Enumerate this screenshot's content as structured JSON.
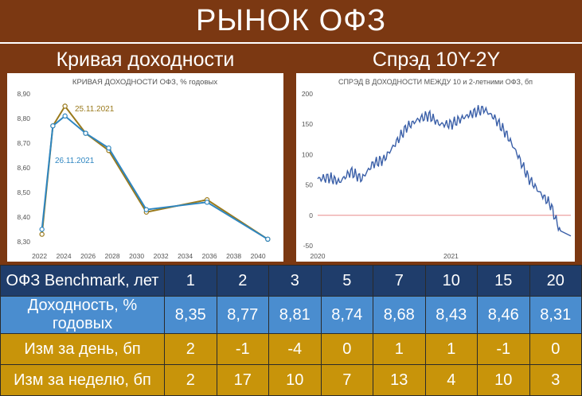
{
  "header": {
    "title": "РЫНОК ОФЗ"
  },
  "left_panel": {
    "heading": "Кривая доходности"
  },
  "right_panel": {
    "heading": "Спрэд 10Y-2Y"
  },
  "colors": {
    "series_a": "#9a7a1c",
    "series_b": "#2e86c1",
    "spread_line": "#3a5fa8",
    "zero_line": "#e88a8a"
  },
  "chart_data": [
    {
      "type": "line",
      "title": "КРИВАЯ ДОХОДНОСТИ ОФЗ, % годовых",
      "xlabel": "",
      "ylabel": "",
      "xlim": [
        2021.5,
        2041.5
      ],
      "ylim": [
        8.29,
        8.9
      ],
      "x_ticks": [
        "2022",
        "2024",
        "2026",
        "2028",
        "2030",
        "2032",
        "2034",
        "2036",
        "2038",
        "2040"
      ],
      "y_ticks": [
        "8,30",
        "8,40",
        "8,50",
        "8,60",
        "8,70",
        "8,80",
        "8,90"
      ],
      "x": [
        2022.2,
        2023.1,
        2024.1,
        2025.8,
        2027.7,
        2030.8,
        2035.8,
        2040.8
      ],
      "series": [
        {
          "name": "25.11.2021",
          "values": [
            8.33,
            8.77,
            8.85,
            8.74,
            8.67,
            8.42,
            8.47,
            8.31
          ]
        },
        {
          "name": "26.11.2021",
          "values": [
            8.35,
            8.77,
            8.81,
            8.74,
            8.68,
            8.43,
            8.46,
            8.31
          ]
        }
      ],
      "grid": false
    },
    {
      "type": "line",
      "title": "СПРЭД В ДОХОДНОСТИ МЕЖДУ 10 и 2-летними ОФЗ, бп",
      "xlabel": "",
      "ylabel": "",
      "xlim": [
        "2020-01-01",
        "2021-11-26"
      ],
      "ylim": [
        -50,
        200
      ],
      "x_ticks": [
        "2020",
        "2021"
      ],
      "y_ticks": [
        "-50",
        "0",
        "50",
        "100",
        "150",
        "200"
      ],
      "reference_line": 0,
      "x": [
        "2020-01",
        "2020-02",
        "2020-03",
        "2020-04",
        "2020-05",
        "2020-06",
        "2020-07",
        "2020-08",
        "2020-09",
        "2020-10",
        "2020-11",
        "2020-12",
        "2021-01",
        "2021-02",
        "2021-03",
        "2021-04",
        "2021-05",
        "2021-06",
        "2021-07",
        "2021-08",
        "2021-09",
        "2021-10",
        "2021-11"
      ],
      "values": [
        60,
        62,
        55,
        72,
        60,
        85,
        92,
        118,
        145,
        157,
        165,
        150,
        150,
        160,
        168,
        175,
        160,
        135,
        102,
        62,
        38,
        18,
        -34
      ],
      "grid": false
    }
  ],
  "table": {
    "rows": [
      {
        "label": "ОФЗ Benchmark, лет",
        "values": [
          "1",
          "2",
          "3",
          "5",
          "7",
          "10",
          "15",
          "20"
        ]
      },
      {
        "label": "Доходность, % годовых",
        "values": [
          "8,35",
          "8,77",
          "8,81",
          "8,74",
          "8,68",
          "8,43",
          "8,46",
          "8,31"
        ]
      },
      {
        "label": "Изм за день, бп",
        "values": [
          "2",
          "-1",
          "-4",
          "0",
          "1",
          "1",
          "-1",
          "0"
        ]
      },
      {
        "label": "Изм за неделю, бп",
        "values": [
          "2",
          "17",
          "10",
          "7",
          "13",
          "4",
          "10",
          "3"
        ]
      }
    ]
  }
}
